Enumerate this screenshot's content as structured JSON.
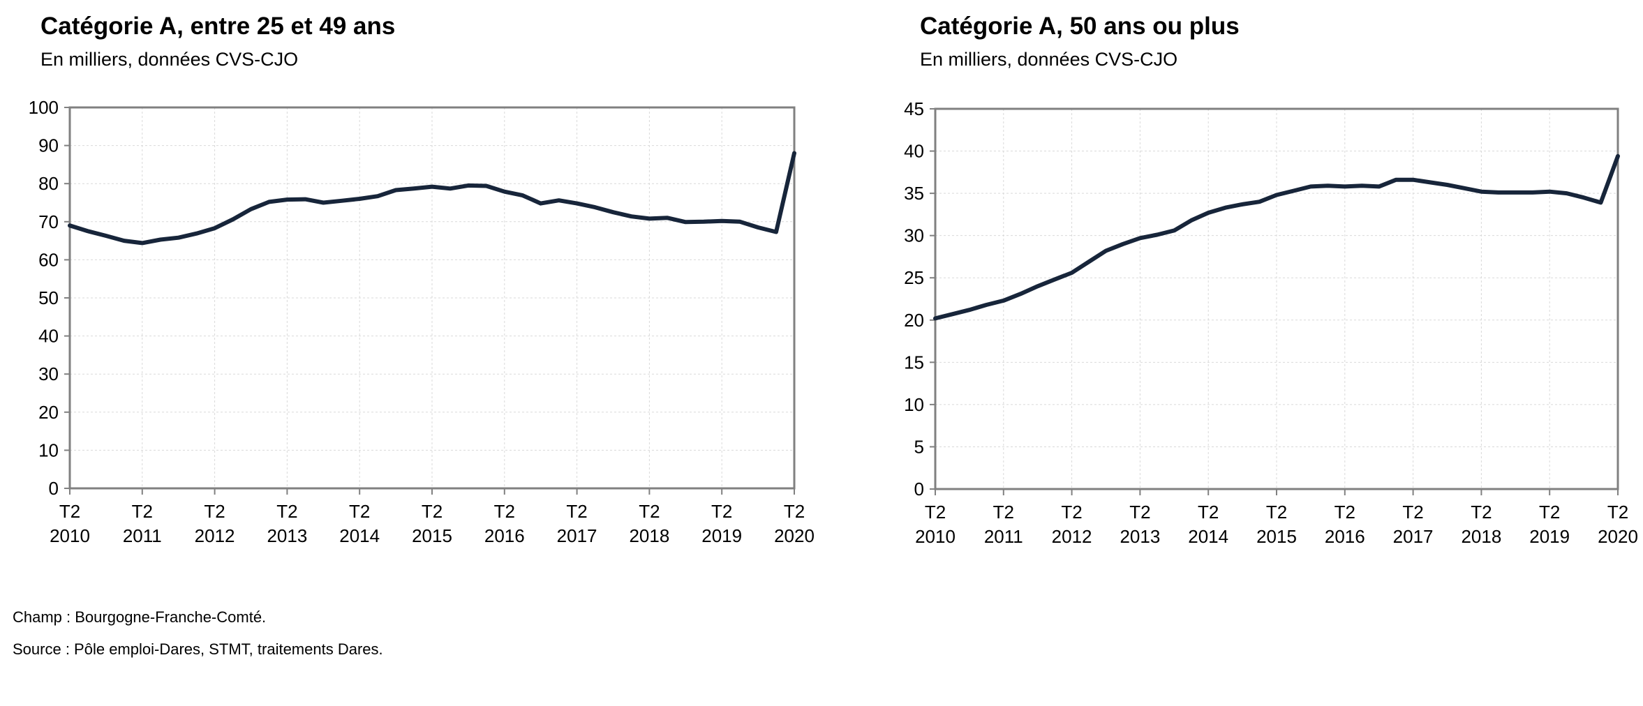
{
  "chart_data": [
    {
      "type": "line",
      "title": "Catégorie A, entre 25 et 49 ans",
      "subtitle": "En milliers, données CVS-CJO",
      "ylim": [
        0,
        100
      ],
      "yticks": [
        0,
        10,
        20,
        30,
        40,
        50,
        60,
        70,
        80,
        90,
        100
      ],
      "xlim": [
        2010.25,
        2020.25
      ],
      "xtick_labels": [
        {
          "year": 2010.25,
          "top": "T2",
          "bottom": "2010"
        },
        {
          "year": 2011.25,
          "top": "T2",
          "bottom": "2011"
        },
        {
          "year": 2012.25,
          "top": "T2",
          "bottom": "2012"
        },
        {
          "year": 2013.25,
          "top": "T2",
          "bottom": "2013"
        },
        {
          "year": 2014.25,
          "top": "T2",
          "bottom": "2014"
        },
        {
          "year": 2015.25,
          "top": "T2",
          "bottom": "2015"
        },
        {
          "year": 2016.25,
          "top": "T2",
          "bottom": "2016"
        },
        {
          "year": 2017.25,
          "top": "T2",
          "bottom": "2017"
        },
        {
          "year": 2018.25,
          "top": "T2",
          "bottom": "2018"
        },
        {
          "year": 2019.25,
          "top": "T2",
          "bottom": "2019"
        },
        {
          "year": 2020.25,
          "top": "T2",
          "bottom": "2020"
        }
      ],
      "grid": true,
      "series": [
        {
          "color": "#17253a",
          "x": [
            2010.25,
            2010.5,
            2010.75,
            2011.0,
            2011.25,
            2011.5,
            2011.75,
            2012.0,
            2012.25,
            2012.5,
            2012.75,
            2013.0,
            2013.25,
            2013.5,
            2013.75,
            2014.0,
            2014.25,
            2014.5,
            2014.75,
            2015.0,
            2015.25,
            2015.5,
            2015.75,
            2016.0,
            2016.25,
            2016.5,
            2016.75,
            2017.0,
            2017.25,
            2017.5,
            2017.75,
            2018.0,
            2018.25,
            2018.5,
            2018.75,
            2019.0,
            2019.25,
            2019.5,
            2019.75,
            2020.0,
            2020.25
          ],
          "values": [
            69.0,
            67.5,
            66.3,
            65.0,
            64.4,
            65.3,
            65.8,
            66.9,
            68.3,
            70.6,
            73.3,
            75.2,
            75.8,
            75.9,
            75.0,
            75.5,
            76.0,
            76.7,
            78.3,
            78.7,
            79.2,
            78.7,
            79.5,
            79.4,
            77.9,
            76.9,
            74.8,
            75.6,
            74.8,
            73.8,
            72.5,
            71.4,
            70.8,
            71.0,
            69.9,
            70.0,
            70.2,
            70.0,
            68.5,
            67.3,
            88.0
          ]
        }
      ]
    },
    {
      "type": "line",
      "title": "Catégorie A, 50 ans ou plus",
      "subtitle": "En milliers, données CVS-CJO",
      "ylim": [
        0,
        45
      ],
      "yticks": [
        0,
        5,
        10,
        15,
        20,
        25,
        30,
        35,
        40,
        45
      ],
      "xlim": [
        2010.25,
        2020.25
      ],
      "xtick_labels": [
        {
          "year": 2010.25,
          "top": "T2",
          "bottom": "2010"
        },
        {
          "year": 2011.25,
          "top": "T2",
          "bottom": "2011"
        },
        {
          "year": 2012.25,
          "top": "T2",
          "bottom": "2012"
        },
        {
          "year": 2013.25,
          "top": "T2",
          "bottom": "2013"
        },
        {
          "year": 2014.25,
          "top": "T2",
          "bottom": "2014"
        },
        {
          "year": 2015.25,
          "top": "T2",
          "bottom": "2015"
        },
        {
          "year": 2016.25,
          "top": "T2",
          "bottom": "2016"
        },
        {
          "year": 2017.25,
          "top": "T2",
          "bottom": "2017"
        },
        {
          "year": 2018.25,
          "top": "T2",
          "bottom": "2018"
        },
        {
          "year": 2019.25,
          "top": "T2",
          "bottom": "2019"
        },
        {
          "year": 2020.25,
          "top": "T2",
          "bottom": "2020"
        }
      ],
      "grid": true,
      "series": [
        {
          "color": "#17253a",
          "x": [
            2010.25,
            2010.5,
            2010.75,
            2011.0,
            2011.25,
            2011.5,
            2011.75,
            2012.0,
            2012.25,
            2012.5,
            2012.75,
            2013.0,
            2013.25,
            2013.5,
            2013.75,
            2014.0,
            2014.25,
            2014.5,
            2014.75,
            2015.0,
            2015.25,
            2015.5,
            2015.75,
            2016.0,
            2016.25,
            2016.5,
            2016.75,
            2017.0,
            2017.25,
            2017.5,
            2017.75,
            2018.0,
            2018.25,
            2018.5,
            2018.75,
            2019.0,
            2019.25,
            2019.5,
            2019.75,
            2020.0,
            2020.25
          ],
          "values": [
            20.2,
            20.7,
            21.2,
            21.8,
            22.3,
            23.1,
            24.0,
            24.8,
            25.6,
            26.9,
            28.2,
            29.0,
            29.7,
            30.1,
            30.6,
            31.8,
            32.7,
            33.3,
            33.7,
            34.0,
            34.8,
            35.3,
            35.8,
            35.9,
            35.8,
            35.9,
            35.8,
            36.6,
            36.6,
            36.3,
            36.0,
            35.6,
            35.2,
            35.1,
            35.1,
            35.1,
            35.2,
            35.0,
            34.5,
            33.9,
            39.4
          ]
        }
      ]
    }
  ],
  "notes": {
    "champ": "Champ : Bourgogne-Franche-Comté.",
    "source": "Source : Pôle emploi-Dares, STMT, traitements Dares."
  }
}
